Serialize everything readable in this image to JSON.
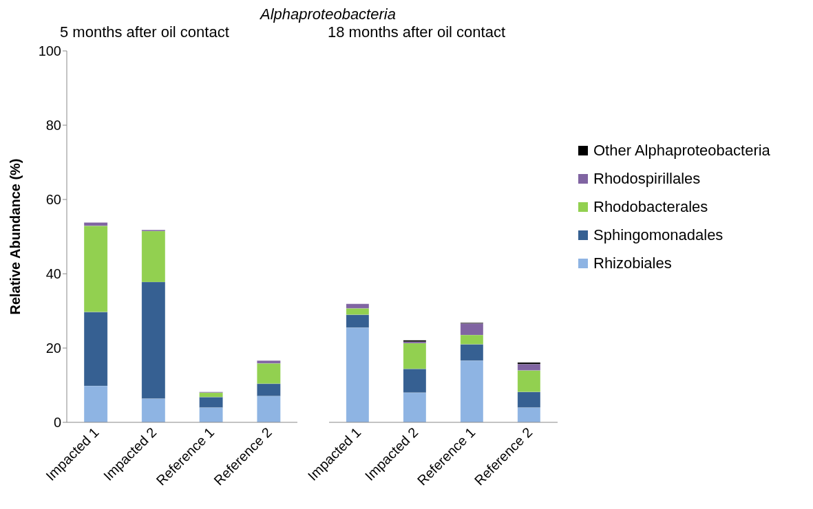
{
  "chart_data": [
    {
      "type": "bar",
      "title": "Alphaproteobacteria",
      "subtitle": "5 months after oil contact",
      "ylabel": "Relative Abundance (%)",
      "categories": [
        "Impacted 1",
        "Impacted 2",
        "Reference 1",
        "Reference 2"
      ],
      "stacked": true,
      "ylim": [
        0,
        100
      ],
      "yticks": [
        0,
        20,
        40,
        60,
        80,
        100
      ],
      "legend": false,
      "series": [
        {
          "color": "#8eb4e3",
          "values": [
            9.8,
            6.4,
            4.0,
            7.1
          ]
        },
        {
          "color": "#366092",
          "values": [
            19.9,
            31.4,
            2.8,
            3.3
          ]
        },
        {
          "color": "#92d050",
          "values": [
            23.2,
            13.7,
            1.2,
            5.5
          ]
        },
        {
          "color": "#8064a2",
          "values": [
            0.9,
            0.3,
            0.2,
            0.7
          ]
        },
        {
          "color": "#000000",
          "values": [
            0,
            0,
            0,
            0
          ]
        }
      ]
    },
    {
      "type": "bar",
      "subtitle": "18 months after oil contact",
      "categories": [
        "Impacted 1",
        "Impacted 2",
        "Reference 1",
        "Reference 2"
      ],
      "stacked": true,
      "ylim": [
        0,
        100
      ],
      "tick_labels": "x",
      "legend": "right",
      "series": [
        {
          "name": "Rhizobiales",
          "color": "#8eb4e3",
          "values": [
            25.5,
            8.0,
            16.6,
            4.0
          ]
        },
        {
          "name": "Sphingomonadales",
          "color": "#366092",
          "values": [
            3.5,
            6.4,
            4.4,
            4.2
          ]
        },
        {
          "name": "Rhodobacterales",
          "color": "#92d050",
          "values": [
            1.7,
            6.9,
            2.5,
            5.8
          ]
        },
        {
          "name": "Rhodospirillales",
          "color": "#8064a2",
          "values": [
            1.2,
            0.4,
            3.1,
            1.7
          ]
        },
        {
          "name": "Other Alphaproteobacteria",
          "color": "#000000",
          "values": [
            0,
            0.4,
            0.2,
            0.4
          ]
        }
      ]
    }
  ]
}
